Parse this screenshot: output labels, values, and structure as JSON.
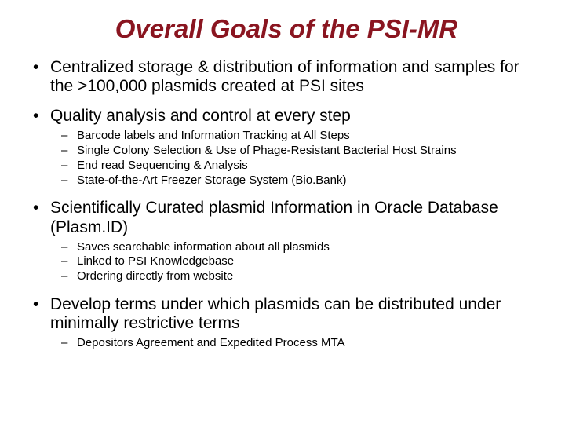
{
  "title": {
    "text": "Overall Goals of the PSI-MR",
    "color": "#8a1520",
    "fontsize": 33
  },
  "body_fontsize_main": 21,
  "body_fontsize_sub": 15,
  "bullets": [
    {
      "text": "Centralized storage & distribution of information and samples for the >100,000 plasmids created at PSI sites",
      "sub": []
    },
    {
      "text": "Quality analysis and control at every step",
      "sub": [
        "Barcode labels and Information Tracking at All Steps",
        "Single Colony Selection & Use of Phage-Resistant Bacterial Host Strains",
        "End read Sequencing & Analysis",
        "State-of-the-Art Freezer Storage System (Bio.Bank)"
      ]
    },
    {
      "text": "Scientifically Curated plasmid Information in Oracle Database (Plasm.ID)",
      "sub": [
        "Saves searchable information about all plasmids",
        "Linked to PSI Knowledgebase",
        "Ordering directly from website"
      ]
    },
    {
      "text": "Develop terms under which plasmids can be distributed under minimally restrictive terms",
      "sub": [
        "Depositors Agreement and Expedited Process MTA"
      ]
    }
  ]
}
